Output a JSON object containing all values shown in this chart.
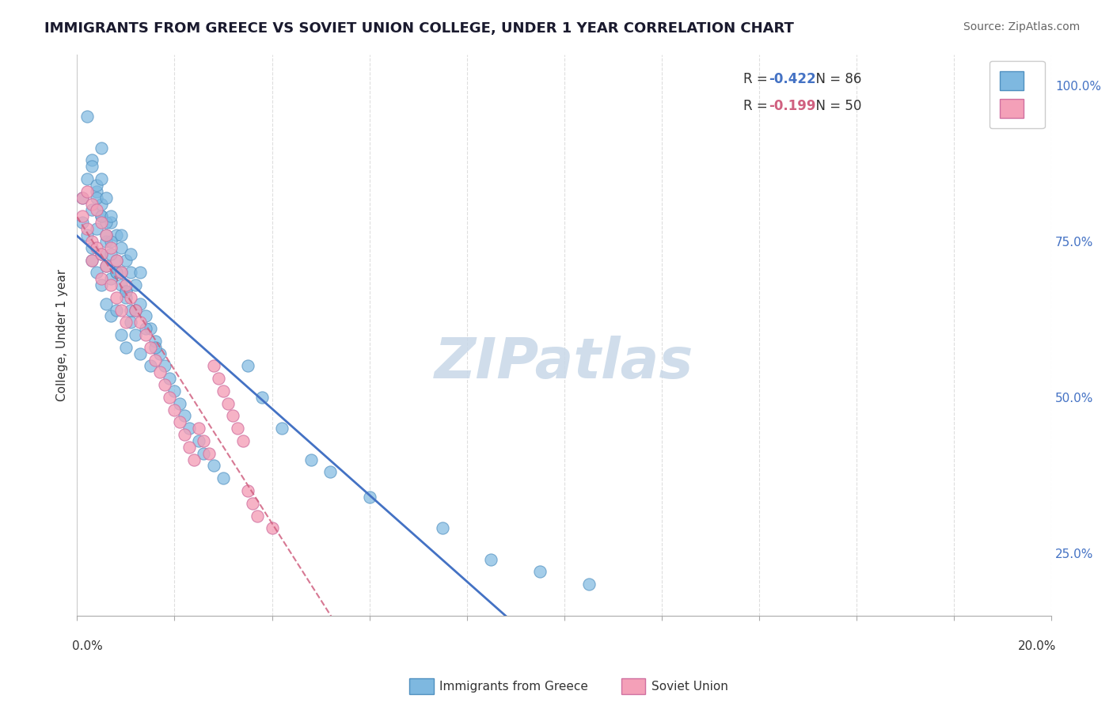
{
  "title": "IMMIGRANTS FROM GREECE VS SOVIET UNION COLLEGE, UNDER 1 YEAR CORRELATION CHART",
  "source": "Source: ZipAtlas.com",
  "ylabel": "College, Under 1 year",
  "ylabel_right_ticks": [
    "100.0%",
    "75.0%",
    "50.0%",
    "25.0%"
  ],
  "ylabel_right_values": [
    1.0,
    0.75,
    0.5,
    0.25
  ],
  "watermark": "ZIPatlas",
  "blue_scatter_x": [
    0.001,
    0.001,
    0.002,
    0.002,
    0.003,
    0.003,
    0.003,
    0.004,
    0.004,
    0.004,
    0.005,
    0.005,
    0.005,
    0.005,
    0.006,
    0.006,
    0.006,
    0.007,
    0.007,
    0.007,
    0.008,
    0.008,
    0.008,
    0.009,
    0.009,
    0.009,
    0.01,
    0.01,
    0.01,
    0.011,
    0.011,
    0.012,
    0.012,
    0.013,
    0.013,
    0.014,
    0.015,
    0.015,
    0.016,
    0.017,
    0.018,
    0.019,
    0.02,
    0.021,
    0.022,
    0.023,
    0.025,
    0.026,
    0.028,
    0.03,
    0.002,
    0.003,
    0.004,
    0.005,
    0.006,
    0.007,
    0.008,
    0.009,
    0.01,
    0.011,
    0.003,
    0.004,
    0.005,
    0.006,
    0.007,
    0.008,
    0.01,
    0.012,
    0.014,
    0.016,
    0.005,
    0.006,
    0.007,
    0.009,
    0.011,
    0.013,
    0.035,
    0.038,
    0.042,
    0.048,
    0.052,
    0.06,
    0.075,
    0.085,
    0.095,
    0.105
  ],
  "blue_scatter_y": [
    0.82,
    0.78,
    0.85,
    0.76,
    0.8,
    0.74,
    0.72,
    0.83,
    0.77,
    0.7,
    0.79,
    0.73,
    0.68,
    0.9,
    0.75,
    0.71,
    0.65,
    0.78,
    0.69,
    0.63,
    0.76,
    0.7,
    0.64,
    0.74,
    0.68,
    0.6,
    0.72,
    0.66,
    0.58,
    0.7,
    0.62,
    0.68,
    0.6,
    0.65,
    0.57,
    0.63,
    0.61,
    0.55,
    0.59,
    0.57,
    0.55,
    0.53,
    0.51,
    0.49,
    0.47,
    0.45,
    0.43,
    0.41,
    0.39,
    0.37,
    0.95,
    0.88,
    0.84,
    0.81,
    0.78,
    0.75,
    0.72,
    0.7,
    0.67,
    0.64,
    0.87,
    0.82,
    0.79,
    0.76,
    0.73,
    0.7,
    0.67,
    0.64,
    0.61,
    0.58,
    0.85,
    0.82,
    0.79,
    0.76,
    0.73,
    0.7,
    0.55,
    0.5,
    0.45,
    0.4,
    0.38,
    0.34,
    0.29,
    0.24,
    0.22,
    0.2
  ],
  "pink_scatter_x": [
    0.001,
    0.001,
    0.002,
    0.002,
    0.003,
    0.003,
    0.003,
    0.004,
    0.004,
    0.005,
    0.005,
    0.005,
    0.006,
    0.006,
    0.007,
    0.007,
    0.008,
    0.008,
    0.009,
    0.009,
    0.01,
    0.01,
    0.011,
    0.012,
    0.013,
    0.014,
    0.015,
    0.016,
    0.017,
    0.018,
    0.019,
    0.02,
    0.021,
    0.022,
    0.023,
    0.024,
    0.025,
    0.026,
    0.027,
    0.028,
    0.029,
    0.03,
    0.031,
    0.032,
    0.033,
    0.034,
    0.035,
    0.036,
    0.037,
    0.04
  ],
  "pink_scatter_y": [
    0.82,
    0.79,
    0.83,
    0.77,
    0.81,
    0.75,
    0.72,
    0.8,
    0.74,
    0.78,
    0.73,
    0.69,
    0.76,
    0.71,
    0.74,
    0.68,
    0.72,
    0.66,
    0.7,
    0.64,
    0.68,
    0.62,
    0.66,
    0.64,
    0.62,
    0.6,
    0.58,
    0.56,
    0.54,
    0.52,
    0.5,
    0.48,
    0.46,
    0.44,
    0.42,
    0.4,
    0.45,
    0.43,
    0.41,
    0.55,
    0.53,
    0.51,
    0.49,
    0.47,
    0.45,
    0.43,
    0.35,
    0.33,
    0.31,
    0.29
  ],
  "xlim": [
    0.0,
    0.2
  ],
  "ylim": [
    0.15,
    1.05
  ],
  "title_color": "#1a1a2e",
  "blue_color": "#7eb8e0",
  "pink_color": "#f4a0b8",
  "blue_line_color": "#4472c4",
  "pink_line_color": "#d06080",
  "grid_color": "#d0d0d0",
  "watermark_color": "#c8d8e8",
  "title_fontsize": 13,
  "source_fontsize": 10,
  "blue_r": "-0.422",
  "blue_n": "86",
  "pink_r": "-0.199",
  "pink_n": "50"
}
